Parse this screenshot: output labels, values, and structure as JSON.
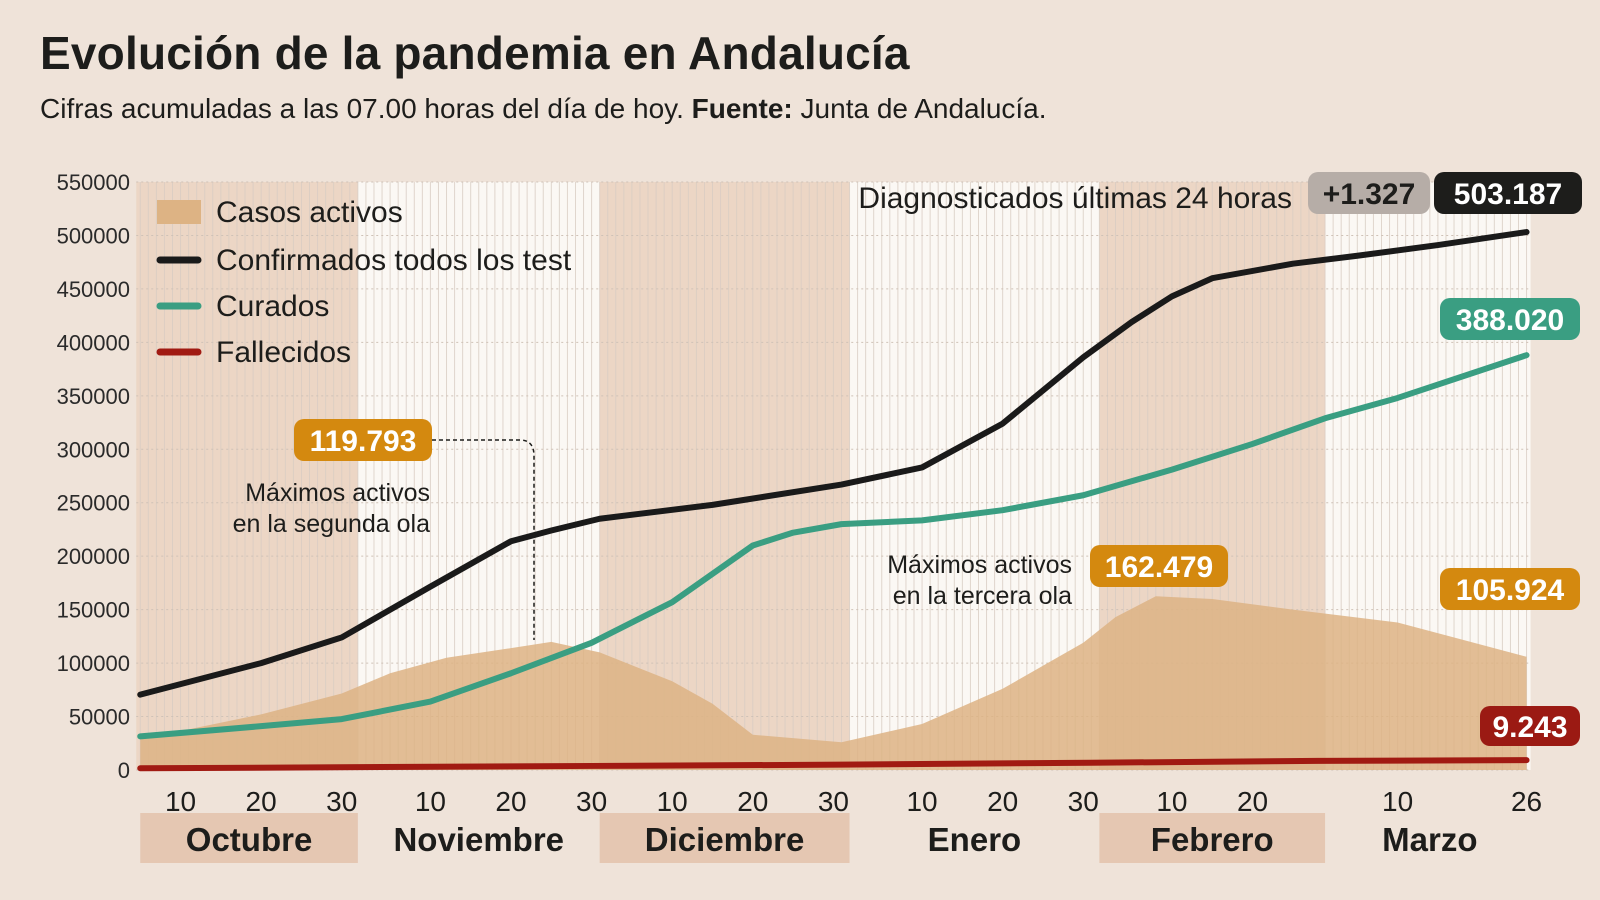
{
  "title": "Evolución de la pandemia en Andalucía",
  "subtitle": {
    "text": "Cifras acumuladas a las 07.00 horas del día de hoy.",
    "source_label": "Fuente:",
    "source": "Junta de Andalucía."
  },
  "chart_data": {
    "type": "line",
    "title": "Evolución de la pandemia en Andalucía",
    "ylim": [
      0,
      550000
    ],
    "y_ticks": [
      "0",
      "50000",
      "100000",
      "150000",
      "200000",
      "250000",
      "300000",
      "350000",
      "400000",
      "450000",
      "500000",
      "550000"
    ],
    "grid": true,
    "legend_position": "top-left",
    "x_range": [
      "2020-10-05",
      "2021-03-26"
    ],
    "x_ticks": [
      {
        "label": "10",
        "date": "2020-10-10"
      },
      {
        "label": "20",
        "date": "2020-10-20"
      },
      {
        "label": "30",
        "date": "2020-10-30"
      },
      {
        "label": "10",
        "date": "2020-11-10"
      },
      {
        "label": "20",
        "date": "2020-11-20"
      },
      {
        "label": "30",
        "date": "2020-11-30"
      },
      {
        "label": "10",
        "date": "2020-12-10"
      },
      {
        "label": "20",
        "date": "2020-12-20"
      },
      {
        "label": "30",
        "date": "2020-12-30"
      },
      {
        "label": "10",
        "date": "2021-01-10"
      },
      {
        "label": "20",
        "date": "2021-01-20"
      },
      {
        "label": "30",
        "date": "2021-01-30"
      },
      {
        "label": "10",
        "date": "2021-02-10"
      },
      {
        "label": "20",
        "date": "2021-02-20"
      },
      {
        "label": "10",
        "date": "2021-03-10"
      },
      {
        "label": "26",
        "date": "2021-03-26",
        "bold": true
      }
    ],
    "months": [
      {
        "label": "Octubre",
        "start": "2020-10-01",
        "end": "2020-11-01",
        "shaded": true
      },
      {
        "label": "Noviembre",
        "start": "2020-11-01",
        "end": "2020-12-01",
        "shaded": false
      },
      {
        "label": "Diciembre",
        "start": "2020-12-01",
        "end": "2021-01-01",
        "shaded": true
      },
      {
        "label": "Enero",
        "start": "2021-01-01",
        "end": "2021-02-01",
        "shaded": false
      },
      {
        "label": "Febrero",
        "start": "2021-02-01",
        "end": "2021-03-01",
        "shaded": true
      },
      {
        "label": "Marzo",
        "start": "2021-03-01",
        "end": "2021-03-27",
        "shaded": false
      }
    ],
    "series": [
      {
        "name": "Casos activos",
        "type": "area",
        "color": "#ddb384",
        "points": [
          [
            "2020-10-05",
            28600
          ],
          [
            "2020-10-20",
            52000
          ],
          [
            "2020-10-30",
            71500
          ],
          [
            "2020-11-05",
            90500
          ],
          [
            "2020-11-12",
            105000
          ],
          [
            "2020-11-20",
            114000
          ],
          [
            "2020-11-25",
            119793
          ],
          [
            "2020-12-01",
            110000
          ],
          [
            "2020-12-10",
            83000
          ],
          [
            "2020-12-15",
            62000
          ],
          [
            "2020-12-20",
            33000
          ],
          [
            "2020-12-31",
            26000
          ],
          [
            "2021-01-10",
            43000
          ],
          [
            "2021-01-20",
            76000
          ],
          [
            "2021-01-30",
            119000
          ],
          [
            "2021-02-03",
            143000
          ],
          [
            "2021-02-08",
            162479
          ],
          [
            "2021-02-15",
            160000
          ],
          [
            "2021-02-25",
            150000
          ],
          [
            "2021-03-10",
            138000
          ],
          [
            "2021-03-26",
            105924
          ]
        ]
      },
      {
        "name": "Confirmados todos los test",
        "type": "line",
        "color": "#1a1a1a",
        "points": [
          [
            "2020-10-05",
            70500
          ],
          [
            "2020-10-20",
            100000
          ],
          [
            "2020-10-30",
            124000
          ],
          [
            "2020-11-10",
            171500
          ],
          [
            "2020-11-20",
            214000
          ],
          [
            "2020-11-25",
            224000
          ],
          [
            "2020-12-01",
            235000
          ],
          [
            "2020-12-15",
            248000
          ],
          [
            "2020-12-31",
            267000
          ],
          [
            "2021-01-10",
            283000
          ],
          [
            "2021-01-20",
            324000
          ],
          [
            "2021-01-30",
            386000
          ],
          [
            "2021-02-05",
            419000
          ],
          [
            "2021-02-10",
            443000
          ],
          [
            "2021-02-15",
            460000
          ],
          [
            "2021-02-25",
            473600
          ],
          [
            "2021-03-05",
            481000
          ],
          [
            "2021-03-15",
            491000
          ],
          [
            "2021-03-26",
            503187
          ]
        ]
      },
      {
        "name": "Curados",
        "type": "line",
        "color": "#3a9e82",
        "points": [
          [
            "2020-10-05",
            31500
          ],
          [
            "2020-10-20",
            41000
          ],
          [
            "2020-10-30",
            47600
          ],
          [
            "2020-11-10",
            64000
          ],
          [
            "2020-11-20",
            90500
          ],
          [
            "2020-11-30",
            119000
          ],
          [
            "2020-12-10",
            157000
          ],
          [
            "2020-12-20",
            210000
          ],
          [
            "2020-12-25",
            222000
          ],
          [
            "2020-12-31",
            230000
          ],
          [
            "2021-01-10",
            233500
          ],
          [
            "2021-01-20",
            243000
          ],
          [
            "2021-01-30",
            257000
          ],
          [
            "2021-02-10",
            281000
          ],
          [
            "2021-02-20",
            305000
          ],
          [
            "2021-03-01",
            329000
          ],
          [
            "2021-03-10",
            348000
          ],
          [
            "2021-03-26",
            388020
          ]
        ]
      },
      {
        "name": "Fallecidos",
        "type": "line",
        "color": "#a11a12",
        "points": [
          [
            "2020-10-05",
            1600
          ],
          [
            "2020-11-30",
            3800
          ],
          [
            "2020-12-31",
            5000
          ],
          [
            "2021-01-31",
            6800
          ],
          [
            "2021-02-28",
            8500
          ],
          [
            "2021-03-26",
            9243
          ]
        ]
      }
    ],
    "annotations": {
      "daily_label": "Diagnosticados últimas 24 horas",
      "daily_increase": "+1.327",
      "confirmed_total": "503.187",
      "recovered_total": "388.020",
      "active_current": "105.924",
      "deaths_total": "9.243",
      "second_wave_peak": "119.793",
      "second_wave_text": [
        "Máximos activos",
        "en la segunda ola"
      ],
      "third_wave_peak": "162.479",
      "third_wave_text": [
        "Máximos activos",
        "en la tercera ola"
      ]
    },
    "colors": {
      "background": "#efe3d9",
      "shaded_month": "#ecd6c5",
      "white_month": "#fbf8f4",
      "active_pill": "#d4890f",
      "increase_pill": "#b6ada7"
    }
  }
}
